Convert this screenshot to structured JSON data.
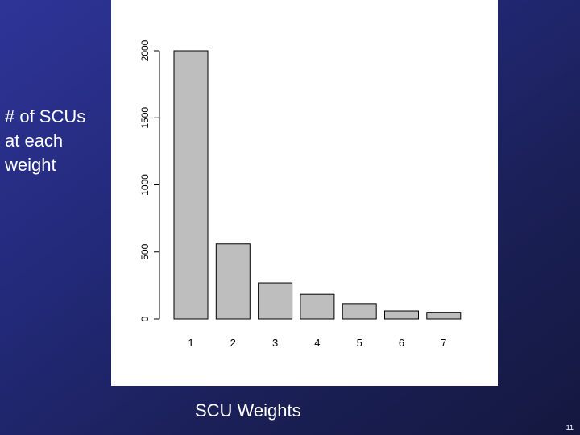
{
  "slide": {
    "number": "11"
  },
  "chart_data": {
    "type": "bar",
    "categories": [
      "1",
      "2",
      "3",
      "4",
      "5",
      "6",
      "7"
    ],
    "values": [
      2000,
      560,
      270,
      185,
      115,
      60,
      50
    ],
    "ylabel_lines": [
      "# of SCUs",
      "at each",
      "weight"
    ],
    "xlabel": "SCU Weights",
    "ylim": [
      0,
      2000
    ],
    "yticks": [
      "0",
      "500",
      "1000",
      "1500",
      "2000"
    ],
    "ytick_values": [
      0,
      500,
      1000,
      1500,
      2000
    ],
    "bar_color": "#bebebe",
    "grid": false
  }
}
